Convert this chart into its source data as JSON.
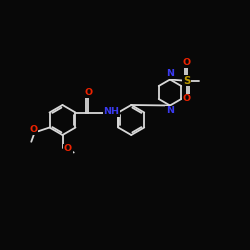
{
  "background_color": "#080808",
  "bond_color": "#d8d8d8",
  "N_color": "#3a3aee",
  "O_color": "#ee2200",
  "S_color": "#bb9900",
  "lw": 1.3,
  "fs": 6.8,
  "xlim": [
    0,
    10
  ],
  "ylim": [
    0,
    10
  ]
}
